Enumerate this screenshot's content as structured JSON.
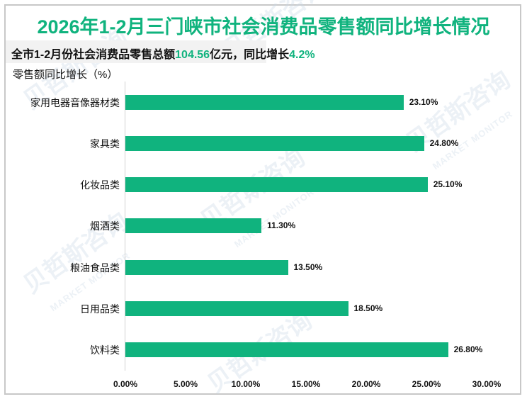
{
  "header": {
    "title": "2026年1-2月三门峡市社会消费品零售额同比增长情况",
    "subtitle_prefix": "全市1-2月份社会消费品零售总额",
    "subtitle_amount": "104.56",
    "subtitle_mid": "亿元，同比增长",
    "subtitle_growth": "4.2%",
    "axis_title": "零售额同比增长（%）"
  },
  "colors": {
    "accent": "#10b37e",
    "bar": "#10b37e",
    "subtitle_bg": "#f2f2f2",
    "frame": "#c8c8c8"
  },
  "watermark": {
    "text": "贝哲斯咨询",
    "sub": "MARKET MONITOR"
  },
  "chart_data": {
    "type": "bar",
    "orientation": "horizontal",
    "title": "2026年1-2月三门峡市社会消费品零售额同比增长情况",
    "subtitle": "全市1-2月份社会消费品零售总额104.56亿元，同比增长4.2%",
    "xlabel": "",
    "ylabel": "零售额同比增长（%）",
    "categories": [
      "家用电器音像器材类",
      "家具类",
      "化妆品类",
      "烟酒类",
      "粮油食品类",
      "日用品类",
      "饮料类"
    ],
    "values": [
      23.1,
      24.8,
      25.1,
      11.3,
      13.5,
      18.5,
      26.8
    ],
    "value_labels": [
      "23.10%",
      "24.80%",
      "25.10%",
      "11.30%",
      "13.50%",
      "18.50%",
      "26.80%"
    ],
    "xlim": [
      0,
      30
    ],
    "x_ticks": [
      "0.00%",
      "5.00%",
      "10.00%",
      "15.00%",
      "20.00%",
      "25.00%",
      "30.00%"
    ],
    "grid": false,
    "legend": null
  }
}
